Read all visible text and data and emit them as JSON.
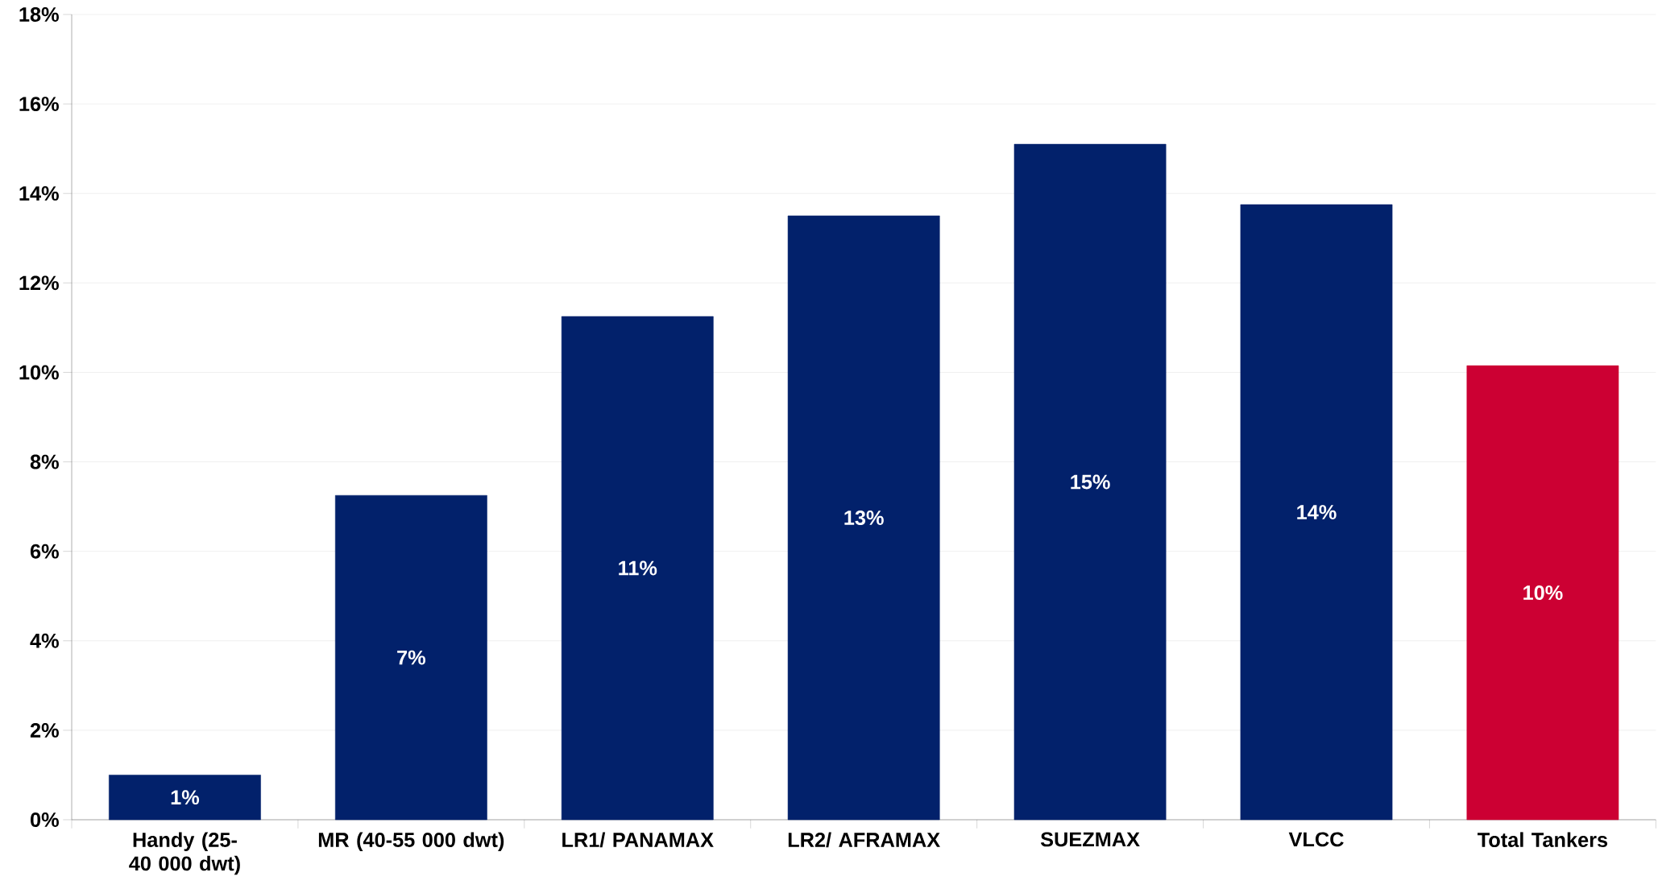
{
  "chart_data": {
    "type": "bar",
    "categories": [
      "Handy (25-40 000 dwt)",
      "MR (40-55 000 dwt)",
      "LR1/ PANAMAX",
      "LR2/ AFRAMAX",
      "SUEZMAX",
      "VLCC",
      "Total Tankers"
    ],
    "values": [
      1.0,
      7.25,
      11.25,
      13.5,
      15.1,
      13.75,
      10.15
    ],
    "value_labels": [
      "1%",
      "7%",
      "11%",
      "13%",
      "15%",
      "14%",
      "10%"
    ],
    "colors": [
      "#02216b",
      "#02216b",
      "#02216b",
      "#02216b",
      "#02216b",
      "#02216b",
      "#cc0033"
    ],
    "ylim": [
      0,
      18
    ],
    "yticks": [
      {
        "value": 0,
        "label": "0%"
      },
      {
        "value": 2,
        "label": "2%"
      },
      {
        "value": 4,
        "label": "4%"
      },
      {
        "value": 6,
        "label": "6%"
      },
      {
        "value": 8,
        "label": "8%"
      },
      {
        "value": 10,
        "label": "10%"
      },
      {
        "value": 12,
        "label": "12%"
      },
      {
        "value": 14,
        "label": "14%"
      },
      {
        "value": 16,
        "label": "16%"
      },
      {
        "value": 18,
        "label": "18%"
      }
    ],
    "grid": "y"
  }
}
